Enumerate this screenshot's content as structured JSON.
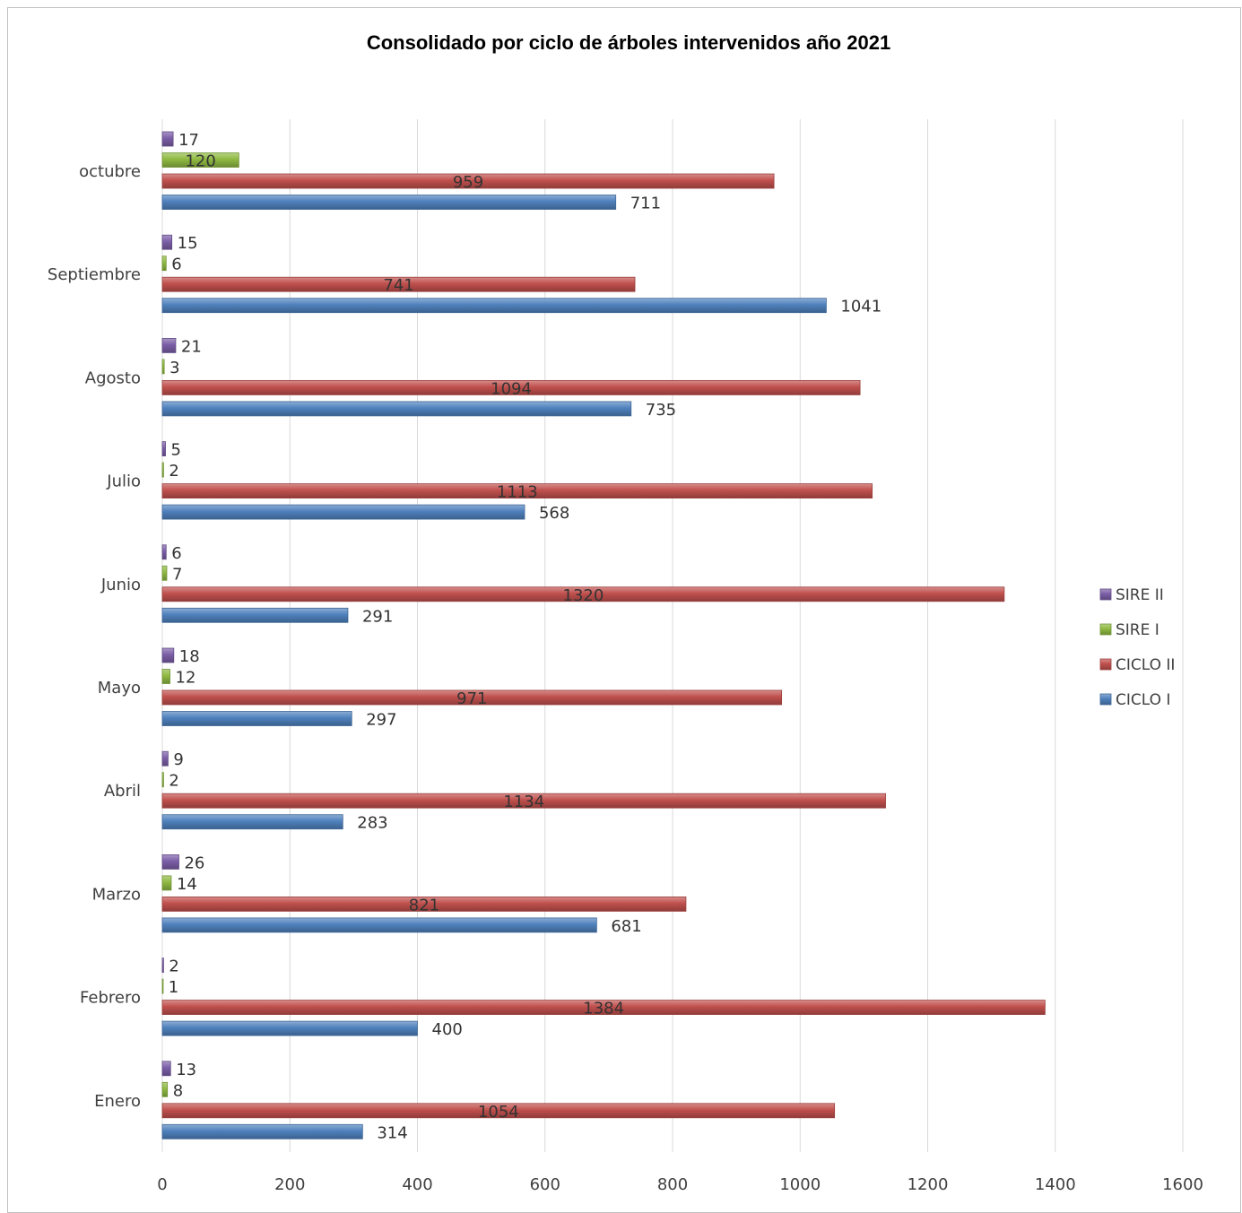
{
  "chart_data": {
    "type": "bar",
    "orientation": "horizontal",
    "title": "Consolidado por ciclo de árboles intervenidos año 2021",
    "xlabel": "",
    "ylabel": "",
    "xlim": [
      0,
      1600
    ],
    "xticks": [
      0,
      200,
      400,
      600,
      800,
      1000,
      1200,
      1400,
      1600
    ],
    "grid": true,
    "legend_position": "right",
    "categories": [
      "octubre",
      "Septiembre",
      "Agosto",
      "Julio",
      "Junio",
      "Mayo",
      "Abril",
      "Marzo",
      "Febrero",
      "Enero"
    ],
    "series": [
      {
        "name": "SIRE II",
        "color": "#7b5ea7",
        "values": [
          17,
          15,
          21,
          5,
          6,
          18,
          9,
          26,
          2,
          13
        ]
      },
      {
        "name": "SIRE I",
        "color": "#8fb942",
        "values": [
          120,
          6,
          3,
          2,
          7,
          12,
          2,
          14,
          1,
          8
        ]
      },
      {
        "name": "CICLO II",
        "color": "#c0504d",
        "values": [
          959,
          741,
          1094,
          1113,
          1320,
          971,
          1134,
          821,
          1384,
          1054
        ]
      },
      {
        "name": "CICLO I",
        "color": "#4f81bd",
        "values": [
          711,
          1041,
          735,
          568,
          291,
          297,
          283,
          681,
          400,
          314
        ]
      }
    ]
  }
}
